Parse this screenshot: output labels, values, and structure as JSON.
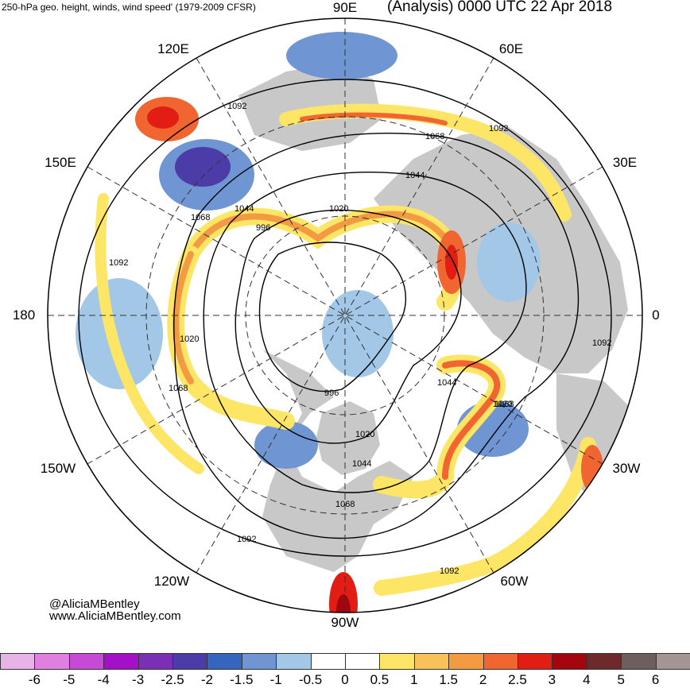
{
  "header": {
    "left": "250-hPa geo. height, winds, wind speed' (1979-2009 CFSR)",
    "right": "(Analysis) 0000 UTC 22 Apr 2018"
  },
  "credits": {
    "handle": "@AliciaMBentley",
    "website": "www.AliciaMBentley.com"
  },
  "longitude_labels": {
    "e90": "90E",
    "e60": "60E",
    "e30": "30E",
    "zero": "0",
    "w30": "30W",
    "w60": "60W",
    "w90": "90W",
    "w120": "120W",
    "w150": "150W",
    "dateline": "180",
    "e150": "150E",
    "e120": "120E"
  },
  "contour_labels": [
    "1092",
    "1068",
    "1044",
    "1020",
    "996",
    "1020",
    "1044",
    "1068",
    "1092",
    "1092",
    "1020",
    "1068",
    "1044",
    "996",
    "1020",
    "1044",
    "1068",
    "1092",
    "1092",
    "1068",
    "1092"
  ],
  "colorbar": {
    "colors": [
      "#e8b4e8",
      "#e07fe0",
      "#c64ad6",
      "#a40fc8",
      "#7a2fb4",
      "#4c3ca8",
      "#3565bf",
      "#6f95d2",
      "#a3c7e6",
      "#ffffff",
      "#ffffff",
      "#fde566",
      "#f8c15a",
      "#f39a43",
      "#f06530",
      "#e11d14",
      "#a3060e",
      "#6e2a2a",
      "#6e5f5f",
      "#a49595"
    ],
    "labels": [
      "-6",
      "-5",
      "-4",
      "-3",
      "-2.5",
      "-2",
      "-1.5",
      "-1",
      "-0.5",
      "0",
      "0.5",
      "1",
      "1.5",
      "2",
      "2.5",
      "3",
      "4",
      "5",
      "6"
    ]
  },
  "theme": {
    "land": "#c8c8c8",
    "contour": "#000000",
    "graticule": "#333333",
    "positive_anomaly": "#f39a43",
    "negative_anomaly": "#6f95d2"
  }
}
